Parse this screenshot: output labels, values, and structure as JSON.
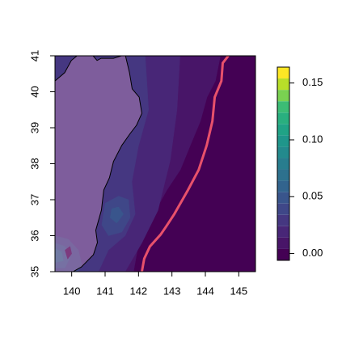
{
  "chart_data": {
    "type": "filled-contour",
    "xlim": [
      139.5,
      145.5
    ],
    "ylim": [
      35,
      41
    ],
    "xticks": [
      140,
      141,
      142,
      143,
      144,
      145
    ],
    "yticks": [
      35,
      36,
      37,
      38,
      39,
      40,
      41
    ],
    "colorbar": {
      "lim": [
        -0.006,
        0.164
      ],
      "breaks": [
        -0.006,
        0.004,
        0.014,
        0.024,
        0.034,
        0.044,
        0.054,
        0.064,
        0.074,
        0.084,
        0.094,
        0.104,
        0.114,
        0.124,
        0.134,
        0.144,
        0.154,
        0.164
      ],
      "colors": [
        "#440154",
        "#481568",
        "#482677",
        "#453781",
        "#3f4788",
        "#39558c",
        "#32648e",
        "#2d718e",
        "#287d8e",
        "#238a8d",
        "#1f968b",
        "#20a386",
        "#29af7f",
        "#3cbc75",
        "#7ad151",
        "#b8de29",
        "#fde725"
      ],
      "ticks": [
        {
          "value": 0,
          "label": "0.00"
        },
        {
          "value": 0.05,
          "label": "0.05"
        },
        {
          "value": 0.1,
          "label": "0.10"
        },
        {
          "value": 0.15,
          "label": "0.15"
        }
      ]
    },
    "bands": [
      {
        "level": 0.0,
        "lon": [
          139.5,
          145.5,
          145.5,
          139.5
        ],
        "lat": [
          41,
          41,
          35,
          35
        ]
      },
      {
        "level": 0.01,
        "lon": [
          139.5,
          144.45,
          144.3,
          144.05,
          143.85,
          143.55,
          143.25,
          142.85,
          142.45,
          142.05,
          141.85,
          139.5
        ],
        "lat": [
          41,
          41,
          40.3,
          39.85,
          39.18,
          38.51,
          37.83,
          37.27,
          36.6,
          36.03,
          35,
          35
        ]
      },
      {
        "level": 0.02,
        "lon": [
          139.5,
          143.24,
          143.15,
          142.95,
          142.58,
          142.1,
          141.6,
          139.5
        ],
        "lat": [
          41,
          41,
          39.5,
          38.1,
          36.7,
          35.8,
          35,
          35
        ]
      },
      {
        "level": 0.03,
        "lon": [
          139.5,
          142.2,
          142.3,
          142.0,
          141.8,
          141.9,
          141.6,
          141.1,
          140.8,
          139.5
        ],
        "lat": [
          41,
          41,
          39.5,
          38.5,
          37.5,
          36.6,
          36.0,
          35.6,
          35,
          35
        ]
      },
      {
        "level": 0.04,
        "lon": [
          140.9,
          141.1,
          141.5,
          141.75,
          141.7,
          141.4,
          141.0
        ],
        "lat": [
          36.3,
          36.0,
          36.1,
          36.5,
          37.0,
          37.1,
          36.9
        ]
      },
      {
        "level": 0.04,
        "lon": [
          139.5,
          139.9,
          140.2,
          140.3,
          140.2,
          139.5
        ],
        "lat": [
          36.0,
          35.9,
          35.6,
          35.2,
          35,
          35
        ]
      },
      {
        "level": 0.05,
        "lon": [
          141.15,
          141.35,
          141.55,
          141.4,
          141.2
        ],
        "lat": [
          36.5,
          36.35,
          36.6,
          36.8,
          36.75
        ]
      },
      {
        "level": 0.05,
        "lon": [
          139.5,
          139.8,
          139.95,
          139.8,
          139.5
        ],
        "lat": [
          35.8,
          35.7,
          35.4,
          35.1,
          35.1
        ]
      },
      {
        "level": 0.06,
        "lon": [
          139.5,
          139.7,
          139.75,
          139.5
        ],
        "lat": [
          35.65,
          35.55,
          35.3,
          35.25
        ]
      },
      {
        "level": 0.0,
        "lon": [
          139.8,
          139.95,
          140.0,
          139.88
        ],
        "lat": [
          35.6,
          35.7,
          35.5,
          35.35
        ]
      }
    ],
    "land": {
      "color": "#e7a6cf",
      "lon": [
        139.5,
        139.79,
        139.99,
        140.16,
        140.64,
        140.76,
        140.88,
        141.25,
        141.49,
        141.61,
        141.73,
        141.81,
        142.02,
        142.1,
        141.94,
        141.75,
        141.5,
        141.25,
        141.13,
        140.96,
        140.89,
        140.72,
        140.77,
        140.65,
        140.29,
        140.04,
        139.5
      ],
      "lat": [
        40.3,
        40.53,
        40.87,
        41,
        41,
        40.87,
        40.93,
        40.93,
        41,
        41,
        40.53,
        40.08,
        39.85,
        39.4,
        39.07,
        38.84,
        38.51,
        38.06,
        37.61,
        37.27,
        36.71,
        36.15,
        35.81,
        35.47,
        35.13,
        35,
        35
      ]
    },
    "trench": {
      "color": "#e8516b",
      "lon": [
        144.69,
        144.52,
        144.48,
        144.28,
        144.21,
        144.04,
        143.8,
        143.48,
        143.07,
        142.83,
        142.66,
        142.34,
        142.17,
        142.1
      ],
      "lat": [
        41,
        40.8,
        40.3,
        39.85,
        39.18,
        38.51,
        37.83,
        37.27,
        36.6,
        36.26,
        36.03,
        35.7,
        35.36,
        35
      ]
    }
  }
}
